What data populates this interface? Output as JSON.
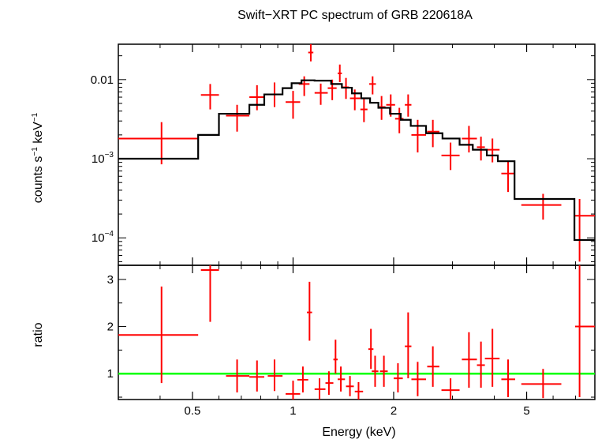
{
  "chart_data": {
    "title": "Swift−XRT PC spectrum of GRB 220618A",
    "xlabel": "Energy (keV)",
    "xscale": "log",
    "xlim": [
      0.3,
      8.0
    ],
    "x_ticks": [
      {
        "v": 0.5,
        "label": "0.5"
      },
      {
        "v": 1,
        "label": "1"
      },
      {
        "v": 2,
        "label": "2"
      },
      {
        "v": 5,
        "label": "5"
      }
    ],
    "colors": {
      "data": "#ff0000",
      "model": "#000000",
      "unity": "#00ff00",
      "axes": "#000000"
    },
    "panels": [
      {
        "name": "spectrum",
        "type": "scatter",
        "ylabel_main": "counts s",
        "ylabel_sup1": "−1",
        "ylabel_mid": " keV",
        "ylabel_sup2": "−1",
        "yscale": "log",
        "ylim": [
          4.5e-05,
          0.028
        ],
        "y_ticks": [
          {
            "v": 0.01,
            "label": "0.01",
            "base": "",
            "exp": ""
          },
          {
            "v": 0.001,
            "label": "",
            "base": "10",
            "exp": "−3"
          },
          {
            "v": 0.0001,
            "label": "",
            "base": "10",
            "exp": "−4"
          }
        ],
        "series": [
          {
            "type": "scatter",
            "points": [
              {
                "x": 0.404,
                "xlo": 0.3,
                "xhi": 0.52,
                "y": 0.0018,
                "ylo": 0.00085,
                "yhi": 0.0029
              },
              {
                "x": 0.565,
                "xlo": 0.53,
                "xhi": 0.6,
                "y": 0.0064,
                "ylo": 0.0042,
                "yhi": 0.0088
              },
              {
                "x": 0.68,
                "xlo": 0.63,
                "xhi": 0.74,
                "y": 0.0035,
                "ylo": 0.0022,
                "yhi": 0.0048
              },
              {
                "x": 0.78,
                "xlo": 0.74,
                "xhi": 0.82,
                "y": 0.006,
                "ylo": 0.0041,
                "yhi": 0.0085
              },
              {
                "x": 0.88,
                "xlo": 0.84,
                "xhi": 0.93,
                "y": 0.0065,
                "ylo": 0.0045,
                "yhi": 0.0092
              },
              {
                "x": 1.0,
                "xlo": 0.95,
                "xhi": 1.05,
                "y": 0.0052,
                "ylo": 0.0032,
                "yhi": 0.0072
              },
              {
                "x": 1.08,
                "xlo": 1.04,
                "xhi": 1.12,
                "y": 0.0088,
                "ylo": 0.0062,
                "yhi": 0.011
              },
              {
                "x": 1.13,
                "xlo": 1.11,
                "xhi": 1.15,
                "y": 0.022,
                "ylo": 0.017,
                "yhi": 0.028
              },
              {
                "x": 1.21,
                "xlo": 1.16,
                "xhi": 1.27,
                "y": 0.0068,
                "ylo": 0.0048,
                "yhi": 0.0089
              },
              {
                "x": 1.31,
                "xlo": 1.27,
                "xhi": 1.35,
                "y": 0.0078,
                "ylo": 0.0055,
                "yhi": 0.01
              },
              {
                "x": 1.38,
                "xlo": 1.36,
                "xhi": 1.4,
                "y": 0.012,
                "ylo": 0.0093,
                "yhi": 0.0155
              },
              {
                "x": 1.44,
                "xlo": 1.4,
                "xhi": 1.47,
                "y": 0.008,
                "ylo": 0.0057,
                "yhi": 0.0105
              },
              {
                "x": 1.53,
                "xlo": 1.48,
                "xhi": 1.59,
                "y": 0.0058,
                "ylo": 0.0041,
                "yhi": 0.0075
              },
              {
                "x": 1.63,
                "xlo": 1.59,
                "xhi": 1.67,
                "y": 0.0042,
                "ylo": 0.0029,
                "yhi": 0.0057
              },
              {
                "x": 1.73,
                "xlo": 1.69,
                "xhi": 1.77,
                "y": 0.0088,
                "ylo": 0.0065,
                "yhi": 0.011
              },
              {
                "x": 1.84,
                "xlo": 1.79,
                "xhi": 1.89,
                "y": 0.0045,
                "ylo": 0.0031,
                "yhi": 0.0062
              },
              {
                "x": 1.96,
                "xlo": 1.9,
                "xhi": 2.02,
                "y": 0.0048,
                "ylo": 0.0034,
                "yhi": 0.0065
              },
              {
                "x": 2.08,
                "xlo": 2.02,
                "xhi": 2.14,
                "y": 0.0032,
                "ylo": 0.0021,
                "yhi": 0.0044
              },
              {
                "x": 2.21,
                "xlo": 2.16,
                "xhi": 2.26,
                "y": 0.0048,
                "ylo": 0.0034,
                "yhi": 0.0065
              },
              {
                "x": 2.36,
                "xlo": 2.26,
                "xhi": 2.5,
                "y": 0.002,
                "ylo": 0.0012,
                "yhi": 0.0031
              },
              {
                "x": 2.62,
                "xlo": 2.52,
                "xhi": 2.74,
                "y": 0.0022,
                "ylo": 0.0014,
                "yhi": 0.0031
              },
              {
                "x": 2.96,
                "xlo": 2.78,
                "xhi": 3.15,
                "y": 0.0011,
                "ylo": 0.00072,
                "yhi": 0.0016
              },
              {
                "x": 3.36,
                "xlo": 3.2,
                "xhi": 3.55,
                "y": 0.0018,
                "ylo": 0.0012,
                "yhi": 0.0026
              },
              {
                "x": 3.65,
                "xlo": 3.55,
                "xhi": 3.75,
                "y": 0.0014,
                "ylo": 0.00095,
                "yhi": 0.0019
              },
              {
                "x": 3.95,
                "xlo": 3.75,
                "xhi": 4.15,
                "y": 0.0013,
                "ylo": 0.0009,
                "yhi": 0.0018
              },
              {
                "x": 4.4,
                "xlo": 4.2,
                "xhi": 4.62,
                "y": 0.00065,
                "ylo": 0.00038,
                "yhi": 0.00093
              },
              {
                "x": 5.6,
                "xlo": 4.82,
                "xhi": 6.35,
                "y": 0.00026,
                "ylo": 0.00017,
                "yhi": 0.00036
              },
              {
                "x": 7.2,
                "xlo": 6.98,
                "xhi": 8.0,
                "y": 0.00019,
                "ylo": 5e-05,
                "yhi": 0.00031
              }
            ]
          },
          {
            "type": "step",
            "edges": [
              0.3,
              0.52,
              0.6,
              0.74,
              0.82,
              0.93,
              0.99,
              1.06,
              1.16,
              1.3,
              1.4,
              1.5,
              1.6,
              1.7,
              1.8,
              1.95,
              2.1,
              2.25,
              2.5,
              2.8,
              3.15,
              3.45,
              3.8,
              4.1,
              4.6,
              6.95,
              8.0
            ],
            "values": [
              0.001,
              0.002,
              0.0037,
              0.0048,
              0.0065,
              0.0078,
              0.009,
              0.0098,
              0.0097,
              0.0088,
              0.0079,
              0.0067,
              0.0058,
              0.0051,
              0.0044,
              0.0037,
              0.0031,
              0.0026,
              0.0021,
              0.0018,
              0.0015,
              0.0013,
              0.0011,
              0.00093,
              0.00031,
              9.4e-05
            ]
          }
        ]
      },
      {
        "name": "ratio",
        "type": "scatter",
        "ylabel": "ratio",
        "yscale": "linear",
        "ylim": [
          0.45,
          3.3
        ],
        "y_ticks": [
          {
            "v": 1,
            "label": "1"
          },
          {
            "v": 2,
            "label": "2"
          },
          {
            "v": 3,
            "label": "3"
          }
        ],
        "unity_line": 1,
        "series": [
          {
            "type": "scatter",
            "points": [
              {
                "x": 0.404,
                "xlo": 0.3,
                "xhi": 0.52,
                "y": 1.82,
                "ylo": 0.8,
                "yhi": 2.85
              },
              {
                "x": 0.565,
                "xlo": 0.53,
                "xhi": 0.6,
                "y": 3.2,
                "ylo": 2.1,
                "yhi": 4.3
              },
              {
                "x": 0.68,
                "xlo": 0.63,
                "xhi": 0.74,
                "y": 0.95,
                "ylo": 0.6,
                "yhi": 1.3
              },
              {
                "x": 0.78,
                "xlo": 0.74,
                "xhi": 0.82,
                "y": 0.93,
                "ylo": 0.62,
                "yhi": 1.28
              },
              {
                "x": 0.88,
                "xlo": 0.84,
                "xhi": 0.93,
                "y": 0.95,
                "ylo": 0.63,
                "yhi": 1.3
              },
              {
                "x": 1.0,
                "xlo": 0.95,
                "xhi": 1.05,
                "y": 0.57,
                "ylo": 0.33,
                "yhi": 0.85
              },
              {
                "x": 1.07,
                "xlo": 1.03,
                "xhi": 1.11,
                "y": 0.87,
                "ylo": 0.6,
                "yhi": 1.15
              },
              {
                "x": 1.12,
                "xlo": 1.1,
                "xhi": 1.14,
                "y": 2.3,
                "ylo": 1.7,
                "yhi": 2.95
              },
              {
                "x": 1.2,
                "xlo": 1.16,
                "xhi": 1.25,
                "y": 0.67,
                "ylo": 0.45,
                "yhi": 0.9
              },
              {
                "x": 1.28,
                "xlo": 1.25,
                "xhi": 1.32,
                "y": 0.8,
                "ylo": 0.55,
                "yhi": 1.05
              },
              {
                "x": 1.34,
                "xlo": 1.32,
                "xhi": 1.36,
                "y": 1.3,
                "ylo": 1.0,
                "yhi": 1.72
              },
              {
                "x": 1.39,
                "xlo": 1.36,
                "xhi": 1.43,
                "y": 0.88,
                "ylo": 0.62,
                "yhi": 1.15
              },
              {
                "x": 1.48,
                "xlo": 1.44,
                "xhi": 1.52,
                "y": 0.73,
                "ylo": 0.52,
                "yhi": 0.95
              },
              {
                "x": 1.57,
                "xlo": 1.53,
                "xhi": 1.62,
                "y": 0.62,
                "ylo": 0.43,
                "yhi": 0.82
              },
              {
                "x": 1.71,
                "xlo": 1.68,
                "xhi": 1.74,
                "y": 1.52,
                "ylo": 1.1,
                "yhi": 1.95
              },
              {
                "x": 1.76,
                "xlo": 1.72,
                "xhi": 1.8,
                "y": 1.05,
                "ylo": 0.72,
                "yhi": 1.38
              },
              {
                "x": 1.87,
                "xlo": 1.82,
                "xhi": 1.92,
                "y": 1.05,
                "ylo": 0.72,
                "yhi": 1.38
              },
              {
                "x": 2.06,
                "xlo": 2.0,
                "xhi": 2.13,
                "y": 0.9,
                "ylo": 0.6,
                "yhi": 1.22
              },
              {
                "x": 2.21,
                "xlo": 2.16,
                "xhi": 2.26,
                "y": 1.58,
                "ylo": 0.9,
                "yhi": 2.3
              },
              {
                "x": 2.36,
                "xlo": 2.26,
                "xhi": 2.5,
                "y": 0.88,
                "ylo": 0.52,
                "yhi": 1.25
              },
              {
                "x": 2.62,
                "xlo": 2.52,
                "xhi": 2.74,
                "y": 1.15,
                "ylo": 0.72,
                "yhi": 1.58
              },
              {
                "x": 2.96,
                "xlo": 2.78,
                "xhi": 3.15,
                "y": 0.65,
                "ylo": 0.42,
                "yhi": 0.9
              },
              {
                "x": 3.36,
                "xlo": 3.2,
                "xhi": 3.55,
                "y": 1.3,
                "ylo": 0.7,
                "yhi": 1.88
              },
              {
                "x": 3.65,
                "xlo": 3.55,
                "xhi": 3.75,
                "y": 1.18,
                "ylo": 0.7,
                "yhi": 1.68
              },
              {
                "x": 3.95,
                "xlo": 3.75,
                "xhi": 4.15,
                "y": 1.32,
                "ylo": 0.72,
                "yhi": 1.95
              },
              {
                "x": 4.4,
                "xlo": 4.2,
                "xhi": 4.62,
                "y": 0.88,
                "ylo": 0.5,
                "yhi": 1.3
              },
              {
                "x": 5.6,
                "xlo": 4.82,
                "xhi": 6.35,
                "y": 0.78,
                "ylo": 0.48,
                "yhi": 1.1
              },
              {
                "x": 7.2,
                "xlo": 6.98,
                "xhi": 8.0,
                "y": 2.0,
                "ylo": 0.5,
                "yhi": 4.0
              }
            ]
          }
        ]
      }
    ]
  }
}
